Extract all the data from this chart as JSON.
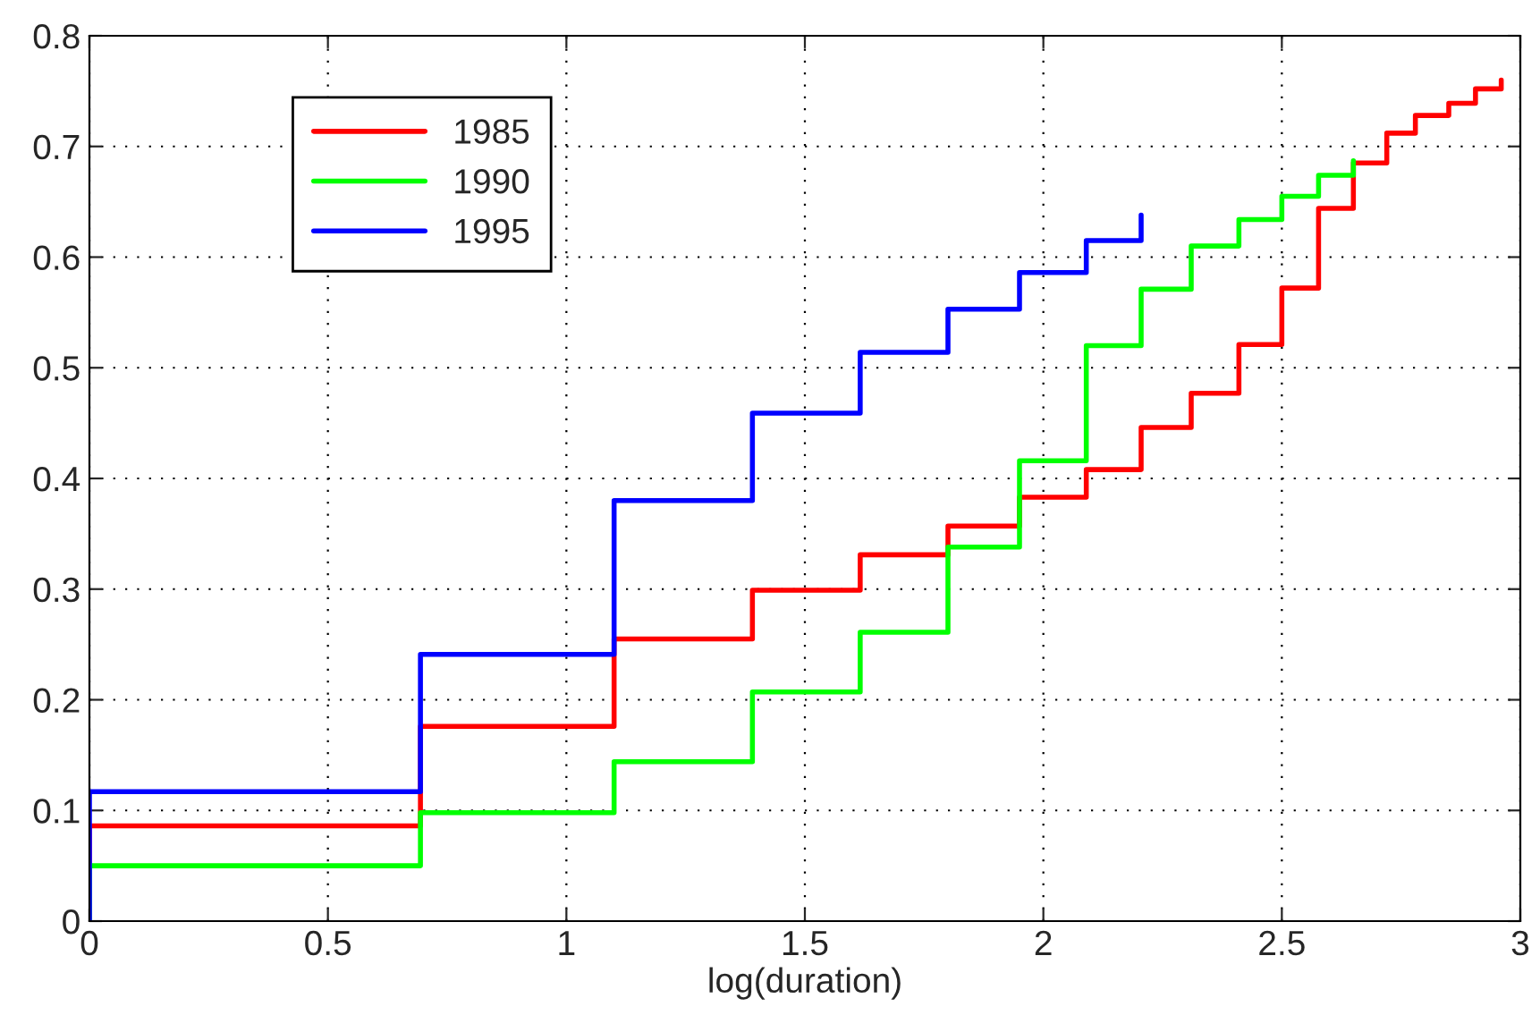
{
  "chart_data": {
    "type": "step",
    "xlabel": "log(duration)",
    "xlim": [
      0,
      3
    ],
    "xticks": [
      0,
      0.5,
      1,
      1.5,
      2,
      2.5,
      3
    ],
    "ylim": [
      0,
      0.8
    ],
    "yticks": [
      0,
      0.1,
      0.2,
      0.3,
      0.4,
      0.5,
      0.6,
      0.7,
      0.8
    ],
    "grid": true,
    "legend": "top left",
    "line_style": "solid",
    "series": [
      {
        "name": "1985",
        "color": "#ff0000",
        "x": [
          0,
          0,
          0.694,
          1.1,
          1.39,
          1.616,
          1.8,
          1.95,
          2.09,
          2.205,
          2.31,
          2.41,
          2.5,
          2.577,
          2.65,
          2.72,
          2.78,
          2.85,
          2.906,
          2.96
        ],
        "values": [
          0,
          0.086,
          0.176,
          0.255,
          0.299,
          0.331,
          0.357,
          0.383,
          0.408,
          0.446,
          0.477,
          0.521,
          0.572,
          0.644,
          0.685,
          0.712,
          0.728,
          0.739,
          0.752,
          0.76
        ]
      },
      {
        "name": "1990",
        "color": "#00ff00",
        "x": [
          0,
          0,
          0.694,
          1.1,
          1.39,
          1.616,
          1.8,
          1.95,
          2.09,
          2.205,
          2.31,
          2.41,
          2.5,
          2.577,
          2.65
        ],
        "values": [
          0,
          0.05,
          0.098,
          0.144,
          0.207,
          0.261,
          0.338,
          0.416,
          0.52,
          0.571,
          0.61,
          0.634,
          0.655,
          0.674,
          0.687
        ]
      },
      {
        "name": "1995",
        "color": "#0000ff",
        "x": [
          0,
          0,
          0.694,
          1.1,
          1.39,
          1.616,
          1.8,
          1.95,
          2.09,
          2.205
        ],
        "values": [
          0,
          0.117,
          0.241,
          0.38,
          0.459,
          0.514,
          0.553,
          0.586,
          0.615,
          0.638
        ]
      }
    ]
  }
}
